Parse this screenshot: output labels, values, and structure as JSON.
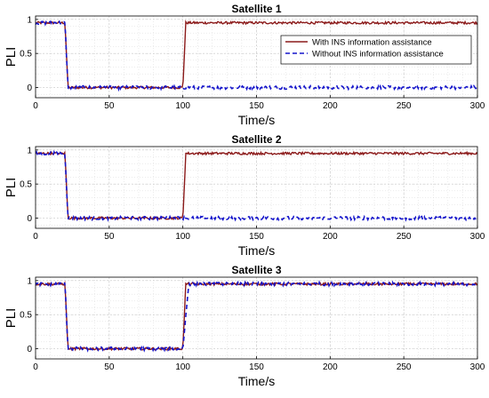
{
  "chart_data": [
    {
      "type": "line",
      "title": "Satellite 1",
      "xlabel": "Time/s",
      "ylabel": "PLI",
      "xlim": [
        0,
        300
      ],
      "ylim": [
        -0.15,
        1.05
      ],
      "xticks": [
        "0",
        "50",
        "100",
        "150",
        "200",
        "250",
        "300"
      ],
      "yticks": [
        "0",
        "0.5",
        "1"
      ],
      "grid": true,
      "legend": "top-right",
      "legend_entries": [
        "With INS information assistance",
        "Without INS information assistance"
      ],
      "series": [
        {
          "name": "With INS information assistance",
          "color": "#8B1A1A",
          "style": "solid",
          "x": [
            0,
            20,
            22,
            100,
            102,
            300
          ],
          "y": [
            0.95,
            0.95,
            0.0,
            0.0,
            0.95,
            0.95
          ]
        },
        {
          "name": "Without INS information assistance",
          "color": "#1515CC",
          "style": "dashed",
          "x": [
            0,
            20,
            22,
            300
          ],
          "y": [
            0.95,
            0.95,
            0.0,
            0.0
          ]
        }
      ]
    },
    {
      "type": "line",
      "title": "Satellite 2",
      "xlabel": "Time/s",
      "ylabel": "PLI",
      "xlim": [
        0,
        300
      ],
      "ylim": [
        -0.15,
        1.05
      ],
      "xticks": [
        "0",
        "50",
        "100",
        "150",
        "200",
        "250",
        "300"
      ],
      "yticks": [
        "0",
        "0.5",
        "1"
      ],
      "grid": true,
      "series": [
        {
          "name": "With INS information assistance",
          "color": "#8B1A1A",
          "style": "solid",
          "x": [
            0,
            20,
            22,
            100,
            102,
            300
          ],
          "y": [
            0.95,
            0.95,
            0.0,
            0.0,
            0.95,
            0.95
          ]
        },
        {
          "name": "Without INS information assistance",
          "color": "#1515CC",
          "style": "dashed",
          "x": [
            0,
            20,
            22,
            300
          ],
          "y": [
            0.95,
            0.95,
            0.0,
            0.0
          ]
        }
      ]
    },
    {
      "type": "line",
      "title": "Satellite 3",
      "xlabel": "Time/s",
      "ylabel": "PLI",
      "xlim": [
        0,
        300
      ],
      "ylim": [
        -0.15,
        1.05
      ],
      "xticks": [
        "0",
        "50",
        "100",
        "150",
        "200",
        "250",
        "300"
      ],
      "yticks": [
        "0",
        "0.5",
        "1"
      ],
      "grid": true,
      "series": [
        {
          "name": "With INS information assistance",
          "color": "#8B1A1A",
          "style": "solid",
          "x": [
            0,
            20,
            22,
            100,
            102,
            300
          ],
          "y": [
            0.95,
            0.95,
            0.0,
            0.0,
            0.95,
            0.95
          ]
        },
        {
          "name": "Without INS information assistance",
          "color": "#1515CC",
          "style": "dashed",
          "x": [
            0,
            20,
            22,
            100,
            104,
            300
          ],
          "y": [
            0.95,
            0.95,
            0.0,
            0.0,
            0.95,
            0.95
          ]
        }
      ]
    }
  ]
}
